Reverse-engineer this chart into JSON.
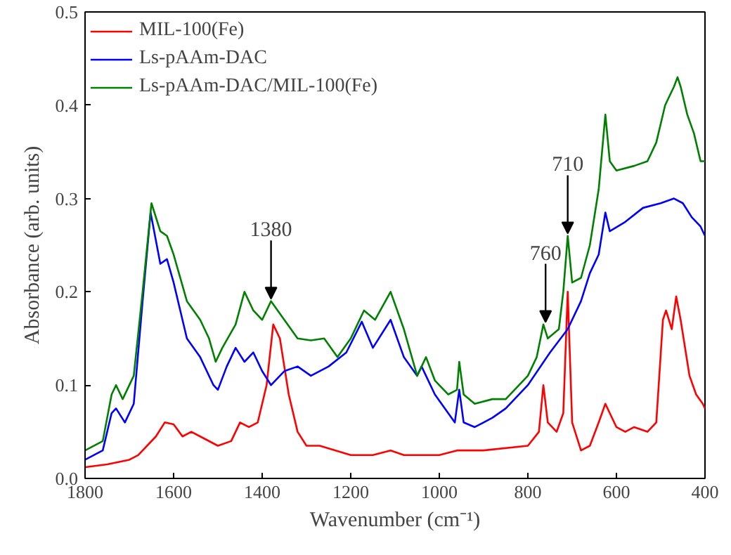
{
  "chart_data": {
    "type": "line",
    "xlabel": "Wavenumber (cm⁻¹)",
    "ylabel": "Absorbance (arb. units)",
    "xlim": [
      1800,
      400
    ],
    "ylim": [
      0,
      0.5
    ],
    "xticks": [
      1800,
      1600,
      1400,
      1200,
      1000,
      800,
      600,
      400
    ],
    "yticks": [
      {
        "value": 0,
        "label": "0.0"
      },
      {
        "value": 0.1,
        "label": "0.1"
      },
      {
        "value": 0.2,
        "label": "0.2"
      },
      {
        "value": 0.3,
        "label": "0.3"
      },
      {
        "value": 0.4,
        "label": "0.4"
      },
      {
        "value": 0.5,
        "label": "0.5"
      }
    ],
    "legend": "top left",
    "grid": false,
    "line_style": "solid",
    "marker": "none",
    "annotations": [
      {
        "text": "1380",
        "x": 1380,
        "y": 0.19
      },
      {
        "text": "760",
        "x": 760,
        "y": 0.165
      },
      {
        "text": "710",
        "x": 710,
        "y": 0.26
      }
    ],
    "series": [
      {
        "name": "MIL-100(Fe)",
        "color": "#ff0000",
        "x": [
          1800,
          1750,
          1700,
          1680,
          1640,
          1620,
          1600,
          1580,
          1560,
          1540,
          1500,
          1470,
          1450,
          1430,
          1410,
          1390,
          1375,
          1360,
          1340,
          1320,
          1300,
          1270,
          1200,
          1150,
          1110,
          1080,
          1000,
          960,
          900,
          800,
          775,
          765,
          755,
          735,
          720,
          710,
          700,
          680,
          660,
          640,
          625,
          600,
          580,
          560,
          530,
          510,
          495,
          488,
          475,
          465,
          455,
          435,
          420,
          405,
          400
        ],
        "values": [
          0.012,
          0.015,
          0.02,
          0.025,
          0.045,
          0.06,
          0.058,
          0.045,
          0.05,
          0.045,
          0.035,
          0.04,
          0.06,
          0.055,
          0.06,
          0.1,
          0.165,
          0.15,
          0.09,
          0.05,
          0.035,
          0.035,
          0.025,
          0.025,
          0.03,
          0.025,
          0.025,
          0.03,
          0.03,
          0.035,
          0.05,
          0.1,
          0.06,
          0.05,
          0.07,
          0.2,
          0.06,
          0.03,
          0.035,
          0.06,
          0.08,
          0.055,
          0.05,
          0.055,
          0.05,
          0.06,
          0.17,
          0.18,
          0.16,
          0.195,
          0.17,
          0.11,
          0.09,
          0.08,
          0.075
        ]
      },
      {
        "name": "Ls-pAAm-DAC",
        "color": "#0000ff",
        "x": [
          1800,
          1760,
          1740,
          1730,
          1710,
          1690,
          1670,
          1652,
          1630,
          1615,
          1600,
          1570,
          1540,
          1510,
          1500,
          1480,
          1460,
          1440,
          1420,
          1400,
          1380,
          1350,
          1320,
          1290,
          1250,
          1210,
          1175,
          1150,
          1110,
          1080,
          1050,
          1040,
          1010,
          980,
          965,
          955,
          945,
          920,
          900,
          880,
          850,
          800,
          750,
          710,
          680,
          660,
          640,
          625,
          615,
          580,
          540,
          500,
          470,
          450,
          430,
          410,
          400
        ],
        "values": [
          0.02,
          0.03,
          0.07,
          0.075,
          0.06,
          0.08,
          0.19,
          0.285,
          0.23,
          0.235,
          0.21,
          0.15,
          0.13,
          0.1,
          0.095,
          0.12,
          0.14,
          0.125,
          0.135,
          0.115,
          0.1,
          0.115,
          0.12,
          0.11,
          0.12,
          0.135,
          0.168,
          0.14,
          0.17,
          0.13,
          0.11,
          0.12,
          0.09,
          0.07,
          0.06,
          0.095,
          0.06,
          0.055,
          0.06,
          0.065,
          0.075,
          0.1,
          0.135,
          0.16,
          0.19,
          0.22,
          0.24,
          0.285,
          0.265,
          0.275,
          0.29,
          0.295,
          0.3,
          0.295,
          0.28,
          0.27,
          0.26
        ]
      },
      {
        "name": "Ls-pAAm-DAC/MIL-100(Fe)",
        "color": "#008000",
        "x": [
          1800,
          1760,
          1740,
          1730,
          1715,
          1690,
          1670,
          1650,
          1630,
          1615,
          1600,
          1570,
          1540,
          1520,
          1505,
          1490,
          1460,
          1440,
          1420,
          1400,
          1380,
          1350,
          1320,
          1290,
          1260,
          1230,
          1200,
          1170,
          1145,
          1110,
          1080,
          1050,
          1030,
          1010,
          980,
          960,
          955,
          945,
          920,
          880,
          850,
          800,
          780,
          765,
          755,
          730,
          720,
          710,
          700,
          680,
          660,
          640,
          625,
          615,
          600,
          560,
          530,
          510,
          490,
          470,
          462,
          455,
          440,
          425,
          410,
          400
        ],
        "values": [
          0.03,
          0.04,
          0.09,
          0.1,
          0.085,
          0.11,
          0.2,
          0.295,
          0.265,
          0.26,
          0.24,
          0.19,
          0.17,
          0.15,
          0.125,
          0.14,
          0.165,
          0.2,
          0.18,
          0.17,
          0.19,
          0.17,
          0.15,
          0.148,
          0.15,
          0.13,
          0.15,
          0.18,
          0.17,
          0.2,
          0.16,
          0.11,
          0.13,
          0.105,
          0.09,
          0.095,
          0.125,
          0.09,
          0.08,
          0.085,
          0.085,
          0.11,
          0.13,
          0.165,
          0.15,
          0.16,
          0.2,
          0.26,
          0.21,
          0.215,
          0.25,
          0.31,
          0.39,
          0.34,
          0.33,
          0.335,
          0.34,
          0.36,
          0.4,
          0.42,
          0.43,
          0.42,
          0.39,
          0.37,
          0.34,
          0.34
        ]
      }
    ]
  }
}
